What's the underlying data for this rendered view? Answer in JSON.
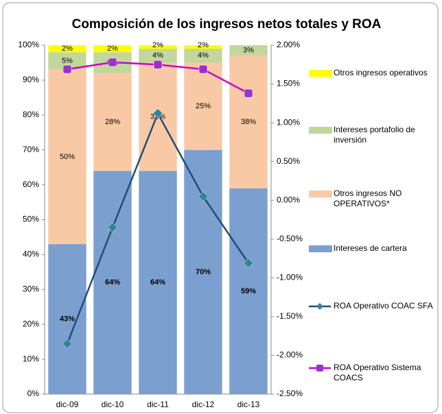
{
  "chart_data": {
    "type": "bar",
    "stacked": true,
    "title": "Composición de los ingresos netos totales y ROA",
    "categories": [
      "dic-09",
      "dic-10",
      "dic-11",
      "dic-12",
      "dic-13"
    ],
    "ylim": [
      0,
      100
    ],
    "yticks": [
      {
        "value": 0,
        "label": "0%"
      },
      {
        "value": 10,
        "label": "10%"
      },
      {
        "value": 20,
        "label": "20%"
      },
      {
        "value": 30,
        "label": "30%"
      },
      {
        "value": 40,
        "label": "40%"
      },
      {
        "value": 50,
        "label": "50%"
      },
      {
        "value": 60,
        "label": "60%"
      },
      {
        "value": 70,
        "label": "70%"
      },
      {
        "value": 80,
        "label": "80%"
      },
      {
        "value": 90,
        "label": "90%"
      },
      {
        "value": 100,
        "label": "100%"
      }
    ],
    "y2lim": [
      -2.5,
      2.0
    ],
    "y2ticks": [
      {
        "value": -2.5,
        "label": "-2.50%"
      },
      {
        "value": -2.0,
        "label": "-2.00%"
      },
      {
        "value": -1.5,
        "label": "-1.50%"
      },
      {
        "value": -1.0,
        "label": "-1.00%"
      },
      {
        "value": -0.5,
        "label": "-0.50%"
      },
      {
        "value": 0.0,
        "label": "0.00%"
      },
      {
        "value": 0.5,
        "label": "0.50%"
      },
      {
        "value": 1.0,
        "label": "1.00%"
      },
      {
        "value": 1.5,
        "label": "1.50%"
      },
      {
        "value": 2.0,
        "label": "2.00%"
      }
    ],
    "legend": "right",
    "series": [
      {
        "name": "Intereses de cartera",
        "color": "#7b9fcf",
        "values": [
          43,
          64,
          64,
          70,
          59
        ],
        "value_labels": [
          "43%",
          "64%",
          "64%",
          "70%",
          "59%"
        ]
      },
      {
        "name": "Otros ingresos NO OPERATIVOS*",
        "color": "#f9c9a5",
        "values": [
          50,
          28,
          31,
          25,
          38
        ],
        "value_labels": [
          "50%",
          "28%",
          "31%",
          "25%",
          "38%"
        ]
      },
      {
        "name": "Intereses portafolio de inversión",
        "color": "#c3d69b",
        "values": [
          5,
          6,
          4,
          4,
          3
        ],
        "value_labels": [
          "5%",
          "6%",
          "4%",
          "4%",
          "3%"
        ]
      },
      {
        "name": "Otros ingresos operativos",
        "color": "#ffff00",
        "values": [
          2,
          2,
          2,
          2,
          0.5
        ],
        "value_labels": [
          "2%",
          "2%",
          "2%",
          "2%",
          null
        ]
      },
      {
        "name": "ROA Operativo COAC SFA",
        "color": "#1f4e79",
        "marker_color": "#31849b",
        "marker": "diamond",
        "axis": "y2",
        "values": [
          -1.85,
          -0.35,
          1.12,
          0.05,
          -0.81
        ]
      },
      {
        "name": "ROA Operativo Sistema COACS",
        "color": "#cc00cc",
        "marker_color": "#9933cc",
        "marker": "square",
        "axis": "y2",
        "values": [
          1.69,
          1.78,
          1.75,
          1.69,
          1.38
        ]
      }
    ]
  }
}
